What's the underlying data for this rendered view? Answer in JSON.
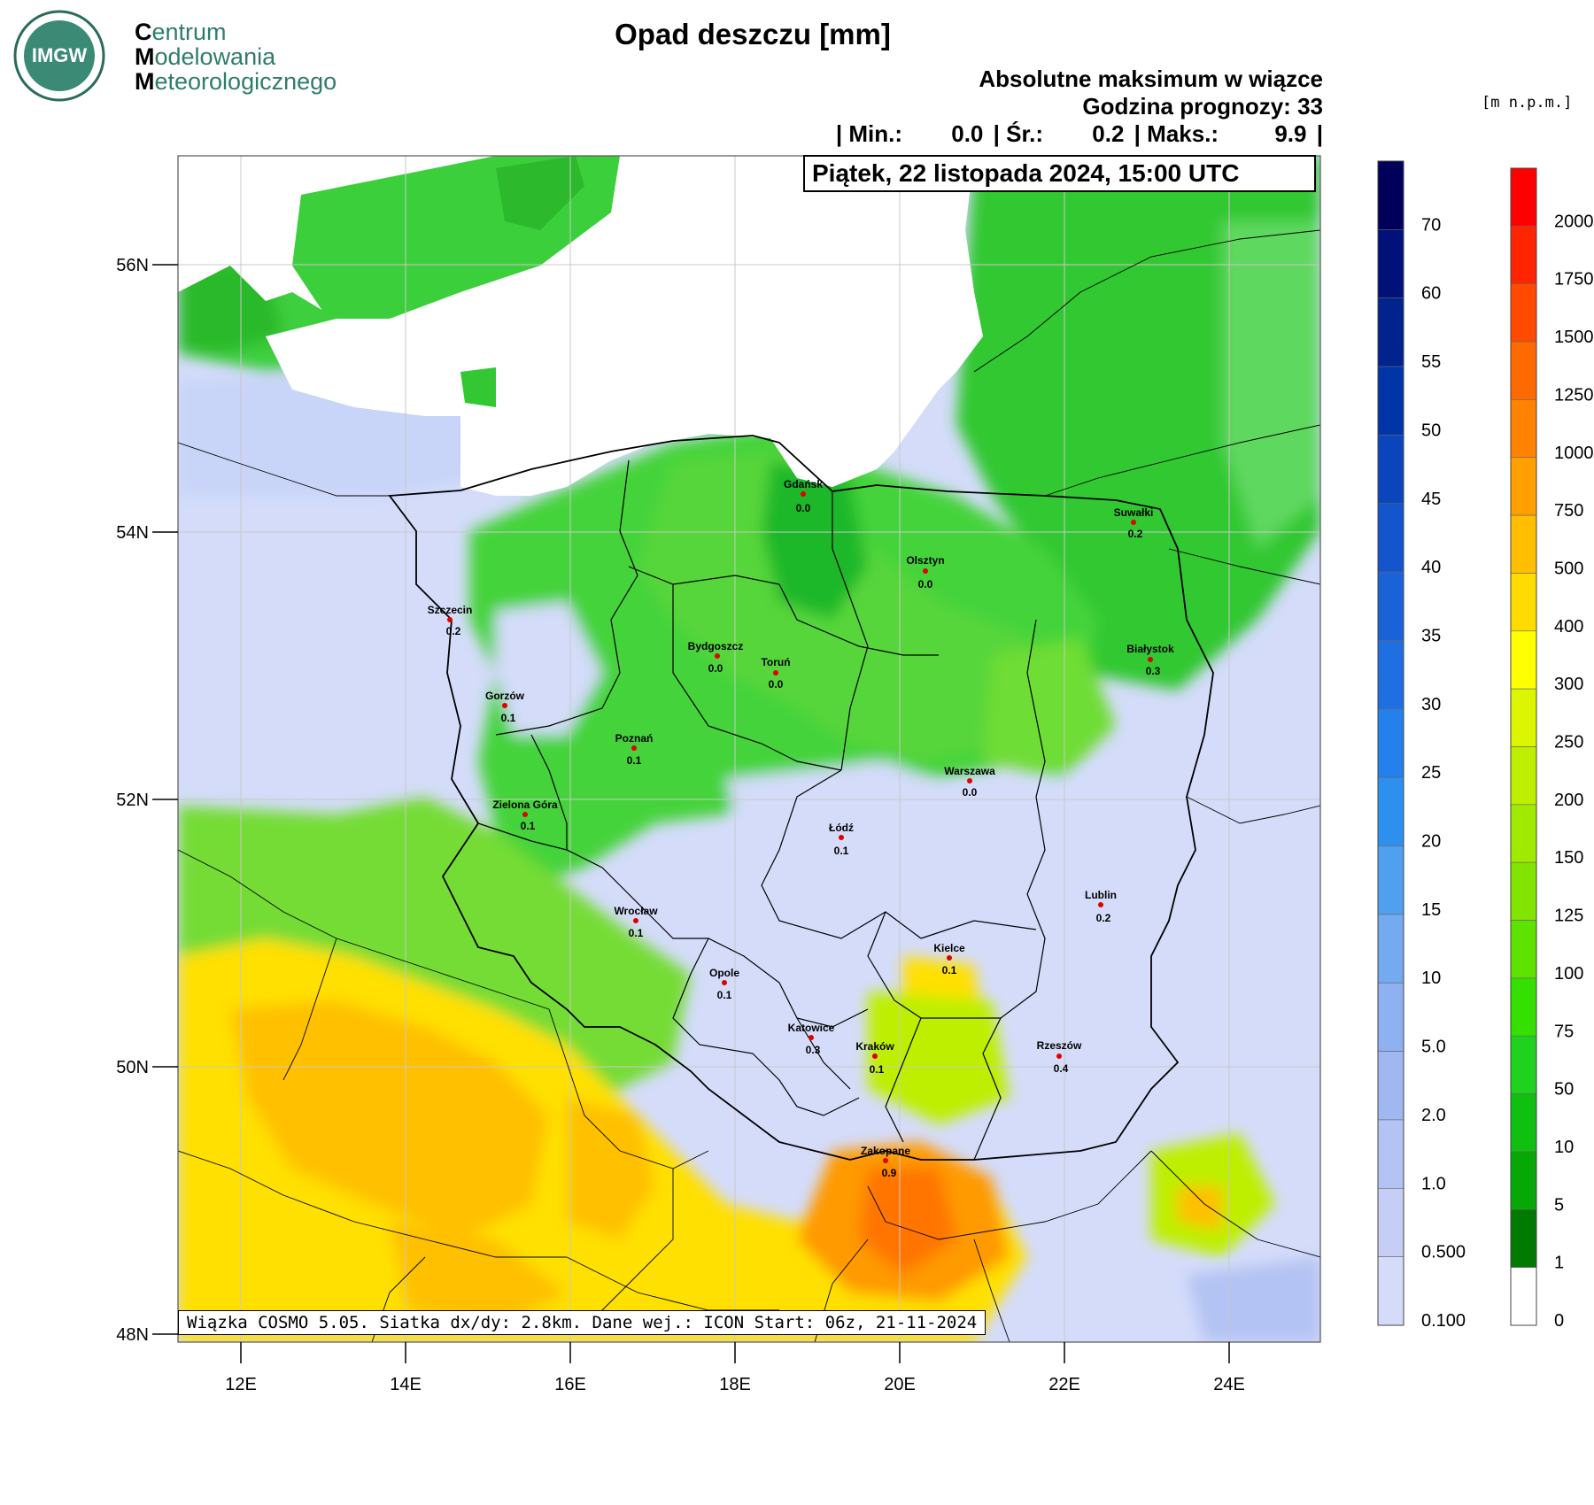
{
  "header": {
    "logo_badge": "IMGW",
    "logo_lines": [
      {
        "cap": "C",
        "rest": "entrum"
      },
      {
        "cap": "M",
        "rest": "odelowania"
      },
      {
        "cap": "M",
        "rest": "eteorologicznego"
      }
    ],
    "title": "Opad deszczu [mm]",
    "subtitle": "Absolutne maksimum w wiązce",
    "forecast_hour": "Godzina prognozy: 33",
    "stats": {
      "min_label": "| Min.:",
      "min_value": "0.0",
      "avg_label": "| Śr.:",
      "avg_value": "0.2",
      "max_label": "| Maks.:",
      "max_value": "9.9",
      "end": "|"
    },
    "date": "Piątek, 22 listopada 2024, 15:00 UTC"
  },
  "footer": {
    "model_info": "Wiązka COSMO 5.05. Siatka dx/dy: 2.8km. Dane wej.: ICON Start: 06z, 21-11-2024"
  },
  "map": {
    "lat_labels": [
      "56N",
      "54N",
      "52N",
      "50N",
      "48N"
    ],
    "lon_labels": [
      "12E",
      "14E",
      "16E",
      "18E",
      "20E",
      "22E",
      "24E"
    ],
    "cities": [
      {
        "name": "Gdańsk",
        "value": "0.0"
      },
      {
        "name": "Suwałki",
        "value": "0.2"
      },
      {
        "name": "Olsztyn",
        "value": "0.0"
      },
      {
        "name": "Szczecin",
        "value": "0.2"
      },
      {
        "name": "Bydgoszcz",
        "value": "0.0"
      },
      {
        "name": "Toruń",
        "value": "0.0"
      },
      {
        "name": "Białystok",
        "value": "0.3"
      },
      {
        "name": "Gorzów",
        "value": "0.1"
      },
      {
        "name": "Poznań",
        "value": "0.1"
      },
      {
        "name": "Warszawa",
        "value": "0.0"
      },
      {
        "name": "Zielona Góra",
        "value": "0.1"
      },
      {
        "name": "Łódź",
        "value": "0.1"
      },
      {
        "name": "Lublin",
        "value": "0.2"
      },
      {
        "name": "Wrocław",
        "value": "0.1"
      },
      {
        "name": "Kielce",
        "value": "0.1"
      },
      {
        "name": "Opole",
        "value": "0.1"
      },
      {
        "name": "Katowice",
        "value": "0.3"
      },
      {
        "name": "Kraków",
        "value": "0.1"
      },
      {
        "name": "Rzeszów",
        "value": "0.4"
      },
      {
        "name": "Zakopane",
        "value": "0.9"
      }
    ]
  },
  "precip_legend": {
    "labels": [
      "70",
      "60",
      "55",
      "50",
      "45",
      "40",
      "35",
      "30",
      "25",
      "20",
      "15",
      "10",
      "5.0",
      "2.0",
      "1.0",
      "0.500",
      "0.100"
    ],
    "colors": [
      "#00005a",
      "#00127a",
      "#00238e",
      "#0035a8",
      "#0a45bc",
      "#1355cc",
      "#1a62d8",
      "#1f6ee2",
      "#2480ea",
      "#2d90ef",
      "#4fa0ee",
      "#73aaf0",
      "#8db1f1",
      "#a0b8f1",
      "#b3c3f3",
      "#c6cef5",
      "#d4dcfa"
    ]
  },
  "elevation_legend": {
    "unit": "[m n.p.m.]",
    "labels": [
      "2000",
      "1750",
      "1500",
      "1250",
      "1000",
      "750",
      "500",
      "400",
      "300",
      "250",
      "200",
      "150",
      "125",
      "100",
      "75",
      "50",
      "10",
      "5",
      "1",
      "0"
    ],
    "colors": [
      "#ff0000",
      "#ff2500",
      "#ff4a00",
      "#ff6a00",
      "#ff8300",
      "#ffa000",
      "#ffbe00",
      "#ffdc00",
      "#ffff00",
      "#dcf500",
      "#beef00",
      "#a0ea00",
      "#82e400",
      "#5ee200",
      "#33e000",
      "#1ed21e",
      "#10c010",
      "#06a806",
      "#007a00",
      "#ffffff"
    ]
  }
}
